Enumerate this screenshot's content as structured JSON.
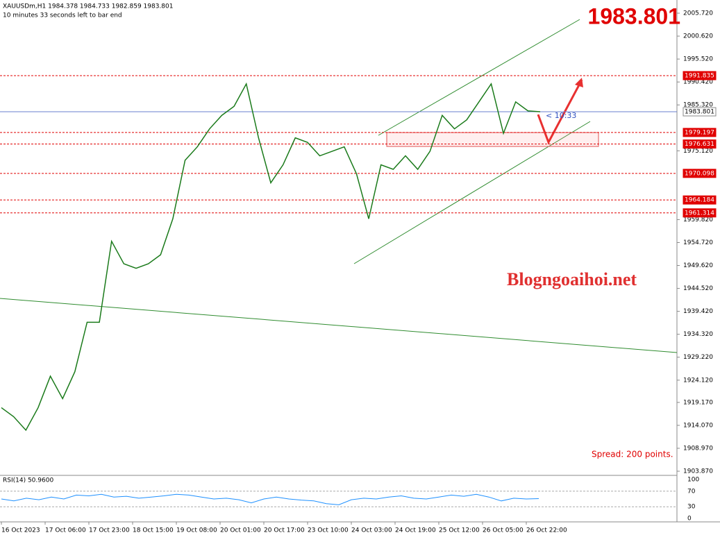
{
  "header": {
    "symbol_line": "XAUUSDm,H1  1984.378 1984.733 1982.859 1983.801",
    "timer": "10 minutes 33 seconds left to bar end"
  },
  "big_price": "1983.801",
  "watermark": "Blogngoaihoi.net",
  "spread": "Spread: 200 points.",
  "countdown": "< 10:33",
  "price_axis": {
    "ylim": [
      1903.87,
      2005.72
    ],
    "ticks": [
      {
        "value": 2005.72,
        "label": "2005.720"
      },
      {
        "value": 2000.62,
        "label": "2000.620"
      },
      {
        "value": 1995.52,
        "label": "1995.520"
      },
      {
        "value": 1990.42,
        "label": "1990.420"
      },
      {
        "value": 1985.32,
        "label": "1985.320"
      },
      {
        "value": 1975.12,
        "label": "1975.120"
      },
      {
        "value": 1959.82,
        "label": "1959.820"
      },
      {
        "value": 1954.72,
        "label": "1954.720"
      },
      {
        "value": 1949.62,
        "label": "1949.620"
      },
      {
        "value": 1944.52,
        "label": "1944.520"
      },
      {
        "value": 1939.42,
        "label": "1939.420"
      },
      {
        "value": 1934.32,
        "label": "1934.320"
      },
      {
        "value": 1929.22,
        "label": "1929.220"
      },
      {
        "value": 1924.12,
        "label": "1924.120"
      },
      {
        "value": 1919.17,
        "label": "1919.170"
      },
      {
        "value": 1914.07,
        "label": "1914.070"
      },
      {
        "value": 1908.97,
        "label": "1908.970"
      },
      {
        "value": 1903.87,
        "label": "1903.870"
      }
    ]
  },
  "levels": [
    {
      "value": 1991.835,
      "label": "1991.835",
      "color": "#e00000"
    },
    {
      "value": 1983.801,
      "label": "1983.801",
      "color": "#6a7fcf"
    },
    {
      "value": 1979.197,
      "label": "1979.197",
      "color": "#e00000"
    },
    {
      "value": 1976.631,
      "label": "1976.631",
      "color": "#e00000"
    },
    {
      "value": 1970.098,
      "label": "1970.098",
      "color": "#e00000"
    },
    {
      "value": 1964.184,
      "label": "1964.184",
      "color": "#e00000"
    },
    {
      "value": 1961.314,
      "label": "1961.314",
      "color": "#e00000"
    }
  ],
  "price": [
    1918,
    1916,
    1913,
    1918,
    1925,
    1920,
    1926,
    1937,
    1937,
    1955,
    1950,
    1949,
    1950,
    1952,
    1960,
    1973,
    1976,
    1980,
    1983,
    1985,
    1990,
    1978,
    1968,
    1972,
    1978,
    1977,
    1974,
    1975,
    1976,
    1970,
    1960,
    1972,
    1971,
    1974,
    1971,
    1975,
    1983,
    1980,
    1982,
    1986,
    1990,
    1979,
    1986,
    1984,
    1983.801
  ],
  "x_labels": [
    "16 Oct 2023",
    "17 Oct 06:00",
    "17 Oct 23:00",
    "18 Oct 15:00",
    "19 Oct 08:00",
    "20 Oct 01:00",
    "20 Oct 17:00",
    "23 Oct 10:00",
    "24 Oct 03:00",
    "24 Oct 19:00",
    "25 Oct 12:00",
    "26 Oct 05:00",
    "26 Oct 22:00"
  ],
  "rsi": {
    "title": "RSI(14) 50.9600",
    "ylim": [
      0,
      100
    ],
    "ticks": [
      100,
      70,
      30,
      0
    ],
    "levels": [
      70,
      30
    ],
    "values": [
      50,
      45,
      52,
      48,
      55,
      50,
      60,
      58,
      62,
      55,
      57,
      52,
      55,
      58,
      62,
      60,
      55,
      50,
      52,
      48,
      40,
      50,
      55,
      50,
      47,
      45,
      38,
      35,
      48,
      52,
      50,
      55,
      58,
      52,
      50,
      55,
      60,
      57,
      62,
      55,
      45,
      52,
      50,
      51
    ]
  }
}
